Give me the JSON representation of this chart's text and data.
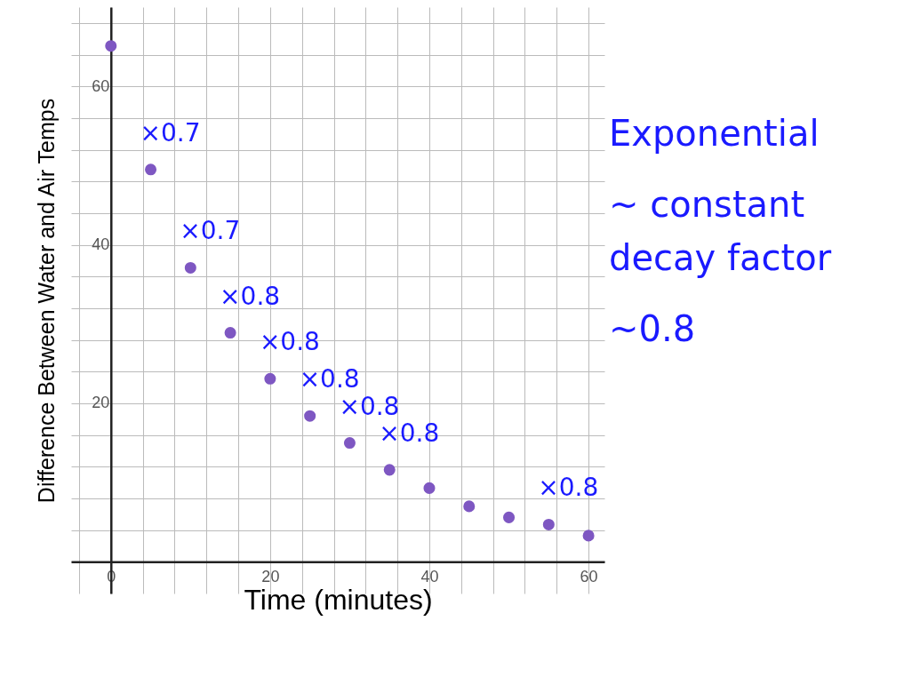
{
  "chart_data": {
    "type": "scatter",
    "xlabel": "Time (minutes)",
    "ylabel": "Difference Between Water and Air Temps",
    "x": [
      0,
      5,
      10,
      15,
      20,
      25,
      30,
      35,
      40,
      45,
      50,
      55,
      60
    ],
    "series": [
      {
        "color": "#7e57c2",
        "values": [
          65.1,
          49.5,
          37.1,
          28.9,
          23.1,
          18.4,
          15.0,
          11.6,
          9.3,
          7.0,
          5.6,
          4.7,
          3.3
        ]
      }
    ],
    "marker": "circle",
    "grid": true,
    "xlim": [
      -5,
      62
    ],
    "ylim": [
      -4,
      70
    ],
    "xticks": [
      {
        "value": -4,
        "label": null
      },
      0,
      {
        "value": 4,
        "label": null
      },
      {
        "value": 8,
        "label": null
      },
      {
        "value": 12,
        "label": null
      },
      {
        "value": 16,
        "label": null
      },
      20,
      {
        "value": 24,
        "label": null
      },
      {
        "value": 28,
        "label": null
      },
      {
        "value": 32,
        "label": null
      },
      {
        "value": 36,
        "label": null
      },
      40,
      {
        "value": 44,
        "label": null
      },
      {
        "value": 48,
        "label": null
      },
      {
        "value": 52,
        "label": null
      },
      {
        "value": 56,
        "label": null
      },
      60
    ],
    "yticks": [
      {
        "value": 0,
        "label": null
      },
      {
        "value": 4,
        "label": null
      },
      {
        "value": 8,
        "label": null
      },
      {
        "value": 12,
        "label": null
      },
      {
        "value": 16,
        "label": null
      },
      20,
      {
        "value": 24,
        "label": null
      },
      {
        "value": 28,
        "label": null
      },
      {
        "value": 32,
        "label": null
      },
      {
        "value": 36,
        "label": null
      },
      40,
      {
        "value": 44,
        "label": null
      },
      {
        "value": 48,
        "label": null
      },
      {
        "value": 52,
        "label": null
      },
      {
        "value": 56,
        "label": null
      },
      60,
      {
        "value": 64,
        "label": null
      },
      {
        "value": 68,
        "label": null
      }
    ],
    "annotations": [
      {
        "text": "×0.7",
        "x": 5,
        "y": 49.5
      },
      {
        "text": "×0.7",
        "x": 10,
        "y": 37.1
      },
      {
        "text": "×0.8",
        "x": 15,
        "y": 28.9
      },
      {
        "text": "×0.8",
        "x": 20,
        "y": 23.1
      },
      {
        "text": "×0.8",
        "x": 25,
        "y": 18.4
      },
      {
        "text": "×0.8",
        "x": 30,
        "y": 15.0
      },
      {
        "text": "×0.8",
        "x": 35,
        "y": 11.6
      },
      {
        "text": "×0.8",
        "x": 55,
        "y": 4.7
      },
      "Exponential",
      "~ constant decay factor",
      "~0.8"
    ]
  }
}
